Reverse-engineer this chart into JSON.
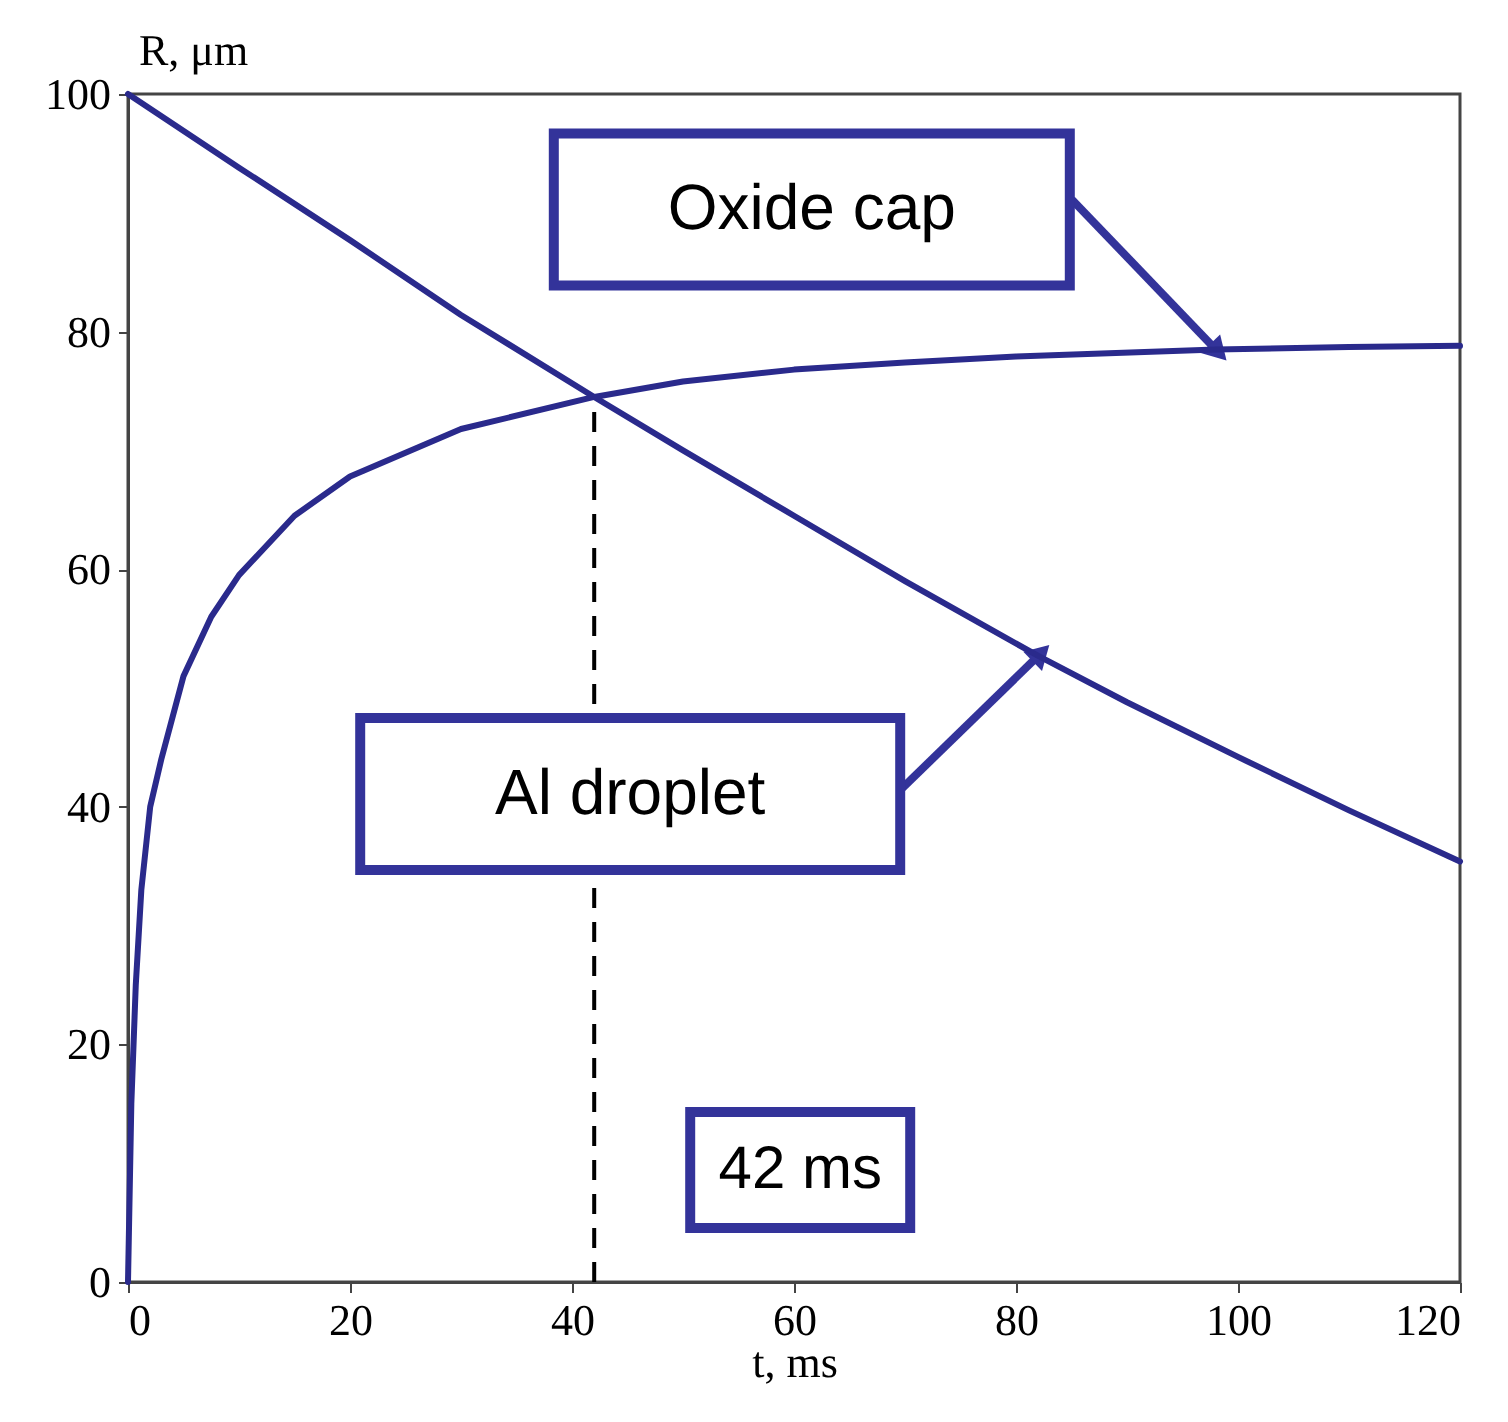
{
  "chart_data": {
    "type": "line",
    "xlabel": "t, ms",
    "ylabel": "R, μm",
    "xlim": [
      0,
      120
    ],
    "ylim": [
      0,
      100
    ],
    "xticks": [
      0,
      20,
      40,
      60,
      80,
      100,
      120
    ],
    "yticks": [
      0,
      20,
      40,
      60,
      80,
      100
    ],
    "grid": false,
    "line_style": "solid",
    "marker": "none",
    "series": [
      {
        "color": "#2a2a8c",
        "x": [
          0,
          10,
          20,
          30,
          42,
          50,
          60,
          70,
          82,
          90,
          100,
          110,
          120
        ],
        "values": [
          100,
          93.8,
          87.7,
          81.4,
          74.5,
          70,
          64.5,
          59,
          52.7,
          48.8,
          44.2,
          39.7,
          35.4
        ]
      },
      {
        "color": "#2a2a8c",
        "x": [
          0,
          0.3,
          0.7,
          1.2,
          2,
          3,
          5,
          7.5,
          10,
          15,
          20,
          30,
          42,
          50,
          60,
          70,
          80,
          98,
          110,
          120
        ],
        "values": [
          0,
          15,
          25,
          33,
          40,
          44,
          51,
          56,
          59.5,
          64.5,
          67.8,
          71.8,
          74.5,
          75.8,
          76.8,
          77.4,
          77.9,
          78.5,
          78.7,
          78.8
        ]
      }
    ],
    "ref_lines": [
      {
        "axis": "x",
        "value": 42,
        "label": "42 ms",
        "color": "#000000",
        "line_style": "dashed"
      }
    ],
    "annotations": [
      "Oxide cap",
      "Al droplet"
    ]
  }
}
